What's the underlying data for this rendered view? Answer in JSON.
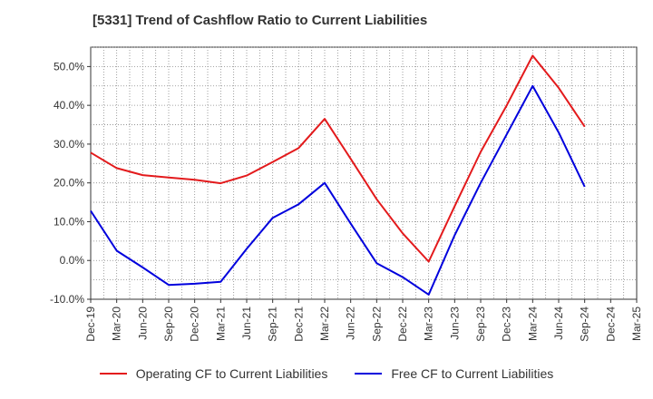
{
  "chart_data": {
    "type": "line",
    "title": "[5331]  Trend of Cashflow Ratio to Current Liabilities",
    "xlabel": "",
    "ylabel": "",
    "ylim": [
      -10,
      55
    ],
    "y_ticks": [
      -10,
      0,
      10,
      20,
      30,
      40,
      50
    ],
    "y_tick_labels": [
      "-10.0%",
      "0.0%",
      "10.0%",
      "20.0%",
      "30.0%",
      "40.0%",
      "50.0%"
    ],
    "grid": true,
    "legend_position": "bottom",
    "categories": [
      "Dec-19",
      "Mar-20",
      "Jun-20",
      "Sep-20",
      "Dec-20",
      "Mar-21",
      "Jun-21",
      "Sep-21",
      "Dec-21",
      "Mar-22",
      "Jun-22",
      "Sep-22",
      "Dec-22",
      "Mar-23",
      "Jun-23",
      "Sep-23",
      "Dec-23",
      "Mar-24",
      "Jun-24",
      "Sep-24",
      "Dec-24",
      "Mar-25"
    ],
    "series": [
      {
        "name": "Operating CF to Current Liabilities",
        "color": "#e31a1c",
        "values": [
          27.8,
          23.8,
          22.0,
          21.4,
          20.8,
          19.9,
          21.9,
          25.4,
          29.0,
          36.5,
          26.2,
          15.8,
          7.0,
          -0.3,
          14.0,
          28.0,
          40.0,
          52.8,
          44.5,
          34.5,
          null,
          null
        ]
      },
      {
        "name": "Free CF to Current Liabilities",
        "color": "#0000dd",
        "values": [
          12.8,
          2.5,
          -1.8,
          -6.3,
          -6.0,
          -5.5,
          3.0,
          11.0,
          14.5,
          20.0,
          9.5,
          -0.7,
          -4.3,
          -8.8,
          6.5,
          20.0,
          32.5,
          45.0,
          33.0,
          19.0,
          null,
          null
        ]
      }
    ]
  }
}
